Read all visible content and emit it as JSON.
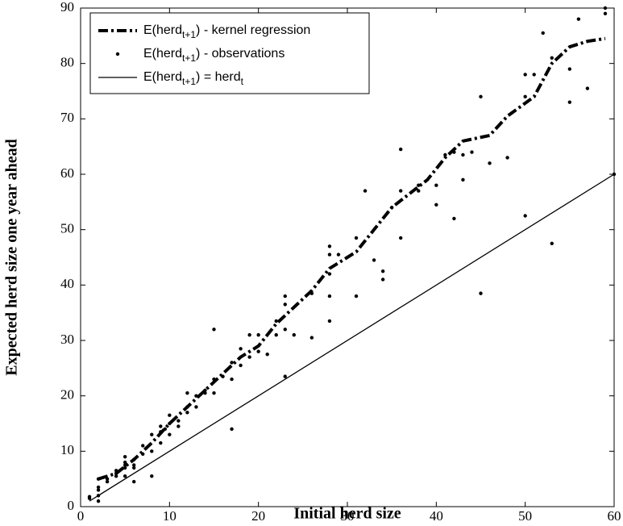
{
  "chart_data": {
    "type": "line",
    "xlabel": "Initial herd size",
    "ylabel": "Expected herd size one year ahead",
    "xlim": [
      0,
      60
    ],
    "ylim": [
      0,
      90
    ],
    "xticks": [
      0,
      10,
      20,
      30,
      40,
      50,
      60
    ],
    "yticks": [
      0,
      10,
      20,
      30,
      40,
      50,
      60,
      70,
      80,
      90
    ],
    "series": [
      {
        "name": [
          "E(herd",
          "t+1",
          ") - kernel regression"
        ],
        "type": "line",
        "style": "dashdot",
        "color": "#000000",
        "x": [
          2,
          4,
          6,
          8,
          10,
          12,
          14,
          16,
          18,
          20,
          22,
          24,
          26,
          28,
          30,
          31,
          33,
          35,
          37,
          39,
          41,
          43,
          46,
          48,
          51,
          53,
          55,
          57,
          59
        ],
        "values": [
          5,
          6,
          8.5,
          11.5,
          15,
          18,
          21,
          24,
          27,
          29,
          33,
          36,
          39,
          43,
          45,
          46,
          50,
          54,
          56.5,
          59,
          63,
          66,
          67,
          70.5,
          74,
          80,
          83,
          84,
          84.5
        ]
      },
      {
        "name": [
          "E(herd",
          "t+1",
          ") - observations"
        ],
        "type": "scatter",
        "color": "#000000",
        "x": [
          1,
          1,
          2,
          2,
          2,
          2,
          2,
          3,
          3,
          4,
          4,
          4,
          5,
          5,
          5,
          5,
          5,
          6,
          6,
          6,
          6,
          7,
          7,
          8,
          8,
          8,
          9,
          9,
          9,
          9.5,
          10,
          10,
          10,
          11,
          11,
          12,
          12,
          12,
          13,
          13,
          14,
          14,
          15,
          15,
          15,
          16,
          17,
          17,
          17,
          18,
          18,
          19,
          19,
          20,
          20,
          21,
          22,
          22,
          23,
          23,
          23,
          23,
          24,
          26,
          26,
          28,
          28,
          28,
          28,
          28,
          29,
          31,
          31,
          32,
          33,
          34,
          34,
          35,
          36,
          36,
          36,
          38,
          38,
          40,
          40,
          41,
          42,
          42,
          43,
          43,
          44,
          45,
          45,
          46,
          48,
          50,
          50,
          50,
          51,
          52,
          53,
          53,
          55,
          55,
          56,
          57,
          59,
          59,
          60
        ],
        "values": [
          1.8,
          1.5,
          1,
          2,
          3,
          3.5,
          5,
          5,
          4.5,
          5.5,
          6,
          6.5,
          5.5,
          7,
          7.5,
          8,
          9,
          4.5,
          7,
          7.5,
          8.5,
          9.5,
          11,
          5.5,
          10,
          13,
          11.5,
          13.5,
          14.5,
          14,
          13,
          15,
          16.5,
          14.5,
          15.5,
          17,
          18,
          20.5,
          18,
          20,
          20.5,
          21,
          20.5,
          23,
          32,
          23.5,
          14,
          23,
          26,
          25.5,
          28.5,
          27,
          31,
          28,
          31,
          27.5,
          31,
          33.5,
          23.5,
          32,
          36.5,
          38,
          31,
          30.5,
          38.5,
          33.5,
          38,
          42,
          45.5,
          47,
          45.5,
          38,
          48.5,
          57,
          44.5,
          41,
          42.5,
          54,
          48.5,
          57,
          64.5,
          57,
          58,
          54.5,
          58,
          63.5,
          52,
          64,
          59,
          63.5,
          64,
          38.5,
          74,
          62,
          63,
          52.5,
          74,
          78,
          78,
          85.5,
          47.5,
          81,
          73,
          79,
          88,
          75.5,
          89,
          90,
          60
        ]
      },
      {
        "name": [
          "E(herd",
          "t+1",
          ") = herd",
          "t"
        ],
        "type": "line",
        "style": "solid",
        "color": "#000000",
        "x": [
          1,
          60
        ],
        "values": [
          1,
          60
        ]
      }
    ]
  }
}
